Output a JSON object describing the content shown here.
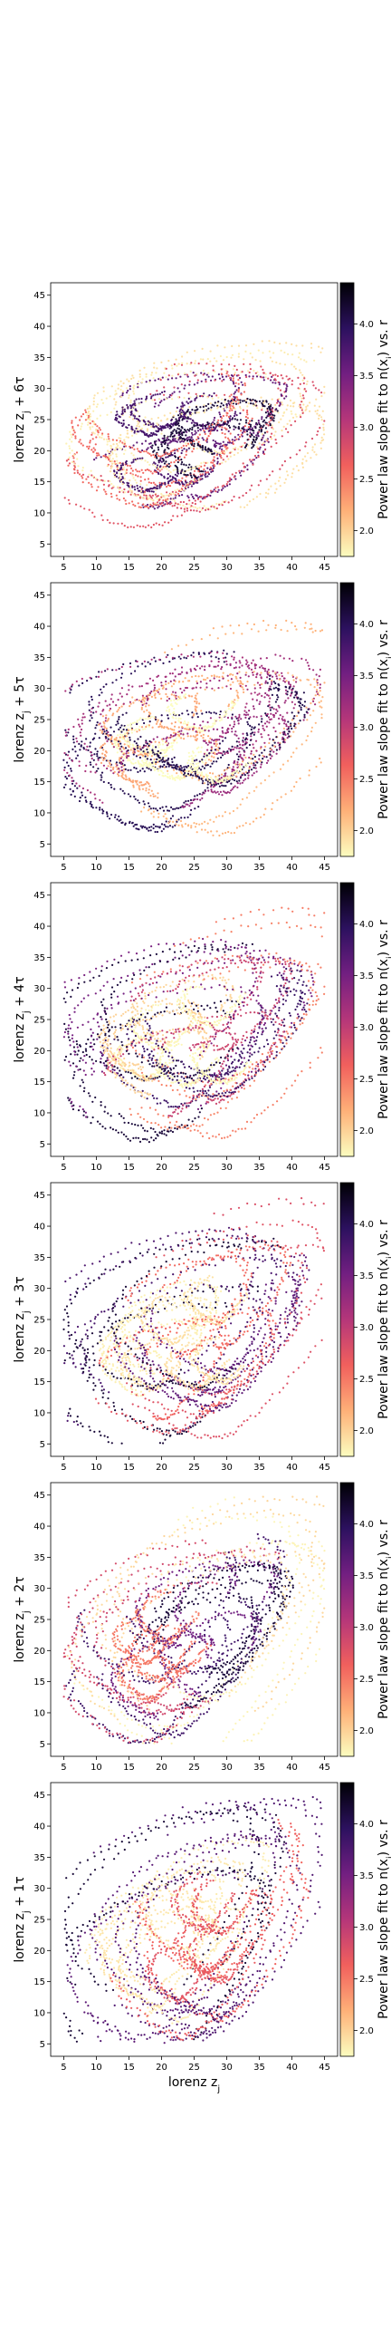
{
  "colors": {
    "colormap": "magma_r",
    "stops": [
      "#fcfdbf",
      "#feb078",
      "#f1605d",
      "#b5367a",
      "#721f81",
      "#2c115f",
      "#000004"
    ]
  },
  "chart_data": [
    {
      "type": "scatter",
      "ylabel": "lorenz z_j + 6τ",
      "xlabel": "",
      "xlim": [
        3,
        47
      ],
      "ylim": [
        3,
        47
      ],
      "xticks": [
        5,
        10,
        15,
        20,
        25,
        30,
        35,
        40,
        45
      ],
      "yticks": [
        5,
        10,
        15,
        20,
        25,
        30,
        35,
        40,
        45
      ],
      "colorbar": {
        "label": "Power law slope fit to n(x_i) vs. r",
        "range": [
          1.75,
          4.4
        ],
        "ticks": [
          "2.0",
          "2.5",
          "3.0",
          "3.5",
          "4.0"
        ]
      },
      "seed": 7
    },
    {
      "type": "scatter",
      "ylabel": "lorenz z_j + 5τ",
      "xlabel": "",
      "xlim": [
        3,
        47
      ],
      "ylim": [
        3,
        47
      ],
      "xticks": [
        5,
        10,
        15,
        20,
        25,
        30,
        35,
        40,
        45
      ],
      "yticks": [
        5,
        10,
        15,
        20,
        25,
        30,
        35,
        40,
        45
      ],
      "colorbar": {
        "label": "Power law slope fit to n(x_i) vs. r",
        "range": [
          1.75,
          4.4
        ],
        "ticks": [
          "2.0",
          "2.5",
          "3.0",
          "3.5",
          "4.0"
        ]
      },
      "seed": 11
    },
    {
      "type": "scatter",
      "ylabel": "lorenz z_j + 4τ",
      "xlabel": "",
      "xlim": [
        3,
        47
      ],
      "ylim": [
        3,
        47
      ],
      "xticks": [
        5,
        10,
        15,
        20,
        25,
        30,
        35,
        40,
        45
      ],
      "yticks": [
        5,
        10,
        15,
        20,
        25,
        30,
        35,
        40,
        45
      ],
      "colorbar": {
        "label": "Power law slope fit to n(x_i) vs. r",
        "range": [
          1.75,
          4.4
        ],
        "ticks": [
          "2.0",
          "2.5",
          "3.0",
          "3.5",
          "4.0"
        ]
      },
      "seed": 17
    },
    {
      "type": "scatter",
      "ylabel": "lorenz z_j + 3τ",
      "xlabel": "",
      "xlim": [
        3,
        47
      ],
      "ylim": [
        3,
        47
      ],
      "xticks": [
        5,
        10,
        15,
        20,
        25,
        30,
        35,
        40,
        45
      ],
      "yticks": [
        5,
        10,
        15,
        20,
        25,
        30,
        35,
        40,
        45
      ],
      "colorbar": {
        "label": "Power law slope fit to n(x_i) vs. r",
        "range": [
          1.75,
          4.4
        ],
        "ticks": [
          "2.0",
          "2.5",
          "3.0",
          "3.5",
          "4.0"
        ]
      },
      "seed": 23
    },
    {
      "type": "scatter",
      "ylabel": "lorenz z_j + 2τ",
      "xlabel": "",
      "xlim": [
        3,
        47
      ],
      "ylim": [
        3,
        47
      ],
      "xticks": [
        5,
        10,
        15,
        20,
        25,
        30,
        35,
        40,
        45
      ],
      "yticks": [
        5,
        10,
        15,
        20,
        25,
        30,
        35,
        40,
        45
      ],
      "colorbar": {
        "label": "Power law slope fit to n(x_i) vs. r",
        "range": [
          1.75,
          4.4
        ],
        "ticks": [
          "2.0",
          "2.5",
          "3.0",
          "3.5",
          "4.0"
        ]
      },
      "seed": 31
    },
    {
      "type": "scatter",
      "ylabel": "lorenz z_j + 1τ",
      "xlabel": "lorenz z_j",
      "xlim": [
        3,
        47
      ],
      "ylim": [
        3,
        47
      ],
      "xticks": [
        5,
        10,
        15,
        20,
        25,
        30,
        35,
        40,
        45
      ],
      "yticks": [
        5,
        10,
        15,
        20,
        25,
        30,
        35,
        40,
        45
      ],
      "colorbar": {
        "label": "Power law slope fit to n(x_i) vs. r",
        "range": [
          1.75,
          4.4
        ],
        "ticks": [
          "2.0",
          "2.5",
          "3.0",
          "3.5",
          "4.0"
        ]
      },
      "seed": 41
    }
  ]
}
